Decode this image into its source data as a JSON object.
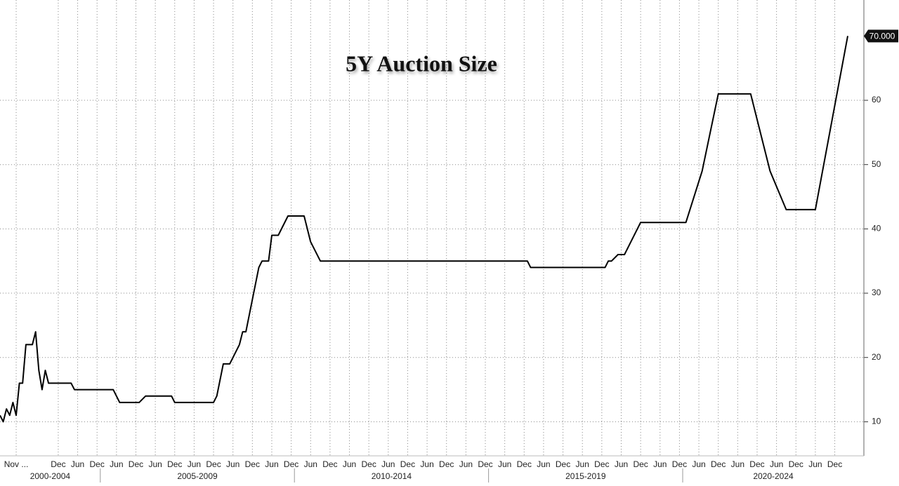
{
  "chart_data": {
    "type": "line",
    "title": "5Y Auction Size",
    "color": "#000000",
    "x": [
      "2002-06",
      "2002-07",
      "2002-08",
      "2002-09",
      "2002-10",
      "2002-11",
      "2002-12",
      "2003-01",
      "2003-02",
      "2003-04",
      "2003-05",
      "2003-06",
      "2003-07",
      "2003-08",
      "2003-09",
      "2004-04",
      "2004-05",
      "2005-05",
      "2005-07",
      "2006-01",
      "2006-03",
      "2006-11",
      "2006-12",
      "2007-12",
      "2008-01",
      "2008-03",
      "2008-05",
      "2008-08",
      "2008-09",
      "2008-10",
      "2009-02",
      "2009-03",
      "2009-05",
      "2009-06",
      "2009-08",
      "2009-11",
      "2010-04",
      "2010-06",
      "2010-09",
      "2016-01",
      "2016-02",
      "2018-01",
      "2018-02",
      "2018-03",
      "2018-05",
      "2018-07",
      "2018-12",
      "2020-02",
      "2020-07",
      "2020-12",
      "2021-10",
      "2022-04",
      "2022-09",
      "2023-06",
      "2024-04"
    ],
    "values": [
      11,
      10,
      12,
      11,
      13,
      11,
      16,
      16,
      22,
      22,
      24,
      18,
      15,
      18,
      16,
      16,
      15,
      15,
      13,
      13,
      14,
      14,
      13,
      13,
      14,
      19,
      19,
      22,
      24,
      24,
      34,
      35,
      35,
      39,
      39,
      42,
      42,
      38,
      35,
      35,
      34,
      34,
      35,
      35,
      36,
      36,
      41,
      41,
      49,
      61,
      61,
      49,
      43,
      43,
      70
    ],
    "last_value_label": {
      "value": 70,
      "label": "70.000"
    },
    "xlim": [
      "2002-06",
      "2024-09"
    ],
    "ylim": [
      4.7,
      75.6
    ],
    "yticks": [
      10,
      20,
      30,
      40,
      50,
      60
    ],
    "xticks": [
      {
        "value": "2002-11",
        "label": "Nov ..."
      },
      {
        "value": "2003-12",
        "label": "Dec"
      },
      {
        "value": "2004-06",
        "label": "Jun"
      },
      {
        "value": "2004-12",
        "label": "Dec"
      },
      {
        "value": "2005-06",
        "label": "Jun"
      },
      {
        "value": "2005-12",
        "label": "Dec"
      },
      {
        "value": "2006-06",
        "label": "Jun"
      },
      {
        "value": "2006-12",
        "label": "Dec"
      },
      {
        "value": "2007-06",
        "label": "Jun"
      },
      {
        "value": "2007-12",
        "label": "Dec"
      },
      {
        "value": "2008-06",
        "label": "Jun"
      },
      {
        "value": "2008-12",
        "label": "Dec"
      },
      {
        "value": "2009-06",
        "label": "Jun"
      },
      {
        "value": "2009-12",
        "label": "Dec"
      },
      {
        "value": "2010-06",
        "label": "Jun"
      },
      {
        "value": "2010-12",
        "label": "Dec"
      },
      {
        "value": "2011-06",
        "label": "Jun"
      },
      {
        "value": "2011-12",
        "label": "Dec"
      },
      {
        "value": "2012-06",
        "label": "Jun"
      },
      {
        "value": "2012-12",
        "label": "Dec"
      },
      {
        "value": "2013-06",
        "label": "Jun"
      },
      {
        "value": "2013-12",
        "label": "Dec"
      },
      {
        "value": "2014-06",
        "label": "Jun"
      },
      {
        "value": "2014-12",
        "label": "Dec"
      },
      {
        "value": "2015-06",
        "label": "Jun"
      },
      {
        "value": "2015-12",
        "label": "Dec"
      },
      {
        "value": "2016-06",
        "label": "Jun"
      },
      {
        "value": "2016-12",
        "label": "Dec"
      },
      {
        "value": "2017-06",
        "label": "Jun"
      },
      {
        "value": "2017-12",
        "label": "Dec"
      },
      {
        "value": "2018-06",
        "label": "Jun"
      },
      {
        "value": "2018-12",
        "label": "Dec"
      },
      {
        "value": "2019-06",
        "label": "Jun"
      },
      {
        "value": "2019-12",
        "label": "Dec"
      },
      {
        "value": "2020-06",
        "label": "Jun"
      },
      {
        "value": "2020-12",
        "label": "Dec"
      },
      {
        "value": "2021-06",
        "label": "Jun"
      },
      {
        "value": "2021-12",
        "label": "Dec"
      },
      {
        "value": "2022-06",
        "label": "Jun"
      },
      {
        "value": "2022-12",
        "label": "Dec"
      },
      {
        "value": "2023-06",
        "label": "Jun"
      },
      {
        "value": "2023-12",
        "label": "Dec"
      }
    ],
    "x_groups": [
      "2000-2004",
      "2005-2009",
      "2010-2014",
      "2015-2019",
      "2020-2024"
    ],
    "grid": true,
    "axis_side": "right"
  }
}
